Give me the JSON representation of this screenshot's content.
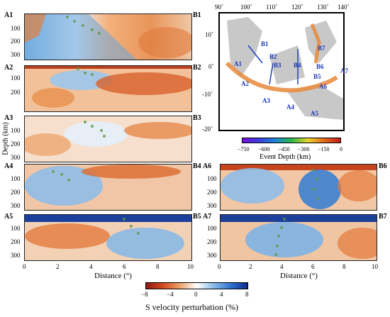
{
  "panels": [
    {
      "id": "p1",
      "left": "A1",
      "right": "B1"
    },
    {
      "id": "p2",
      "left": "A2",
      "right": "B2"
    },
    {
      "id": "p3",
      "left": "A3",
      "right": "B3"
    },
    {
      "id": "p4",
      "left": "A4",
      "right": "B4"
    },
    {
      "id": "p5",
      "left": "A5",
      "right": "B5"
    },
    {
      "id": "p6",
      "left": "A6",
      "right": "B6"
    },
    {
      "id": "p7",
      "left": "A7",
      "right": "B7"
    }
  ],
  "depth_ticks": [
    "100",
    "200",
    "300"
  ],
  "depth_ticks_top": [
    "100",
    "200"
  ],
  "depth_label": "Depth (km)",
  "distance_ticks": [
    "0",
    "2",
    "4",
    "6",
    "8",
    "10"
  ],
  "distance_label": "Distance (°)",
  "map": {
    "lon_ticks": [
      "90˚",
      "100˚",
      "110˚",
      "120˚",
      "130˚",
      "140˚"
    ],
    "lat_ticks": [
      "10˚",
      "0˚",
      "-10˚",
      "-20˚"
    ],
    "profile_labels": [
      "A1",
      "A2",
      "A3",
      "A4",
      "A5",
      "A6",
      "A7",
      "B1",
      "B2",
      "B3",
      "B4",
      "B5",
      "B6",
      "B7"
    ]
  },
  "event_colorbar": {
    "ticks": [
      "−750",
      "−600",
      "−450",
      "−300",
      "−150",
      "0"
    ],
    "label": "Event Depth (km)"
  },
  "velocity_colorbar": {
    "ticks": [
      "−8",
      "−4",
      "0",
      "4",
      "8"
    ],
    "label": "S velocity perturbation (%)"
  }
}
